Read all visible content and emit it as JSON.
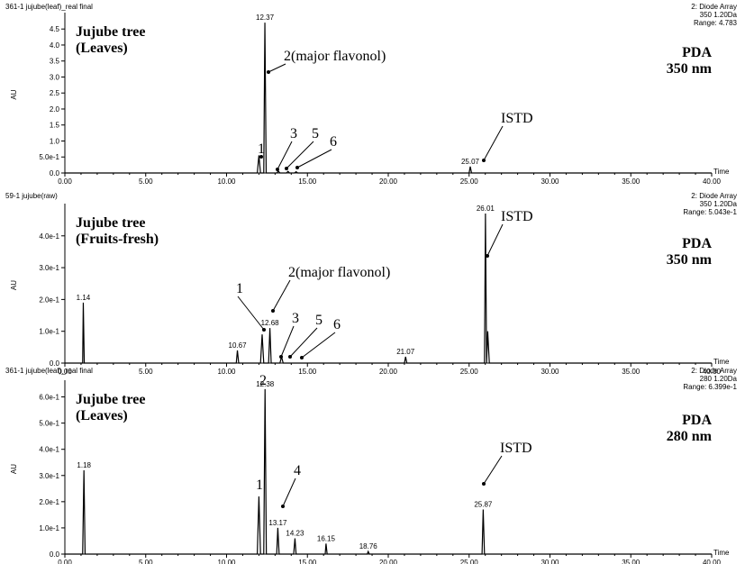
{
  "chart_data": [
    {
      "type": "line",
      "sample": "361-1 jujube(leaf)_real final",
      "detector": [
        "2: Diode Array",
        "350 1.20Da",
        "Range: 4.783"
      ],
      "title": [
        "Jujube tree",
        "(Leaves)"
      ],
      "mode": [
        "PDA",
        "350 nm"
      ],
      "x_label": "Time",
      "y_label": "AU",
      "xlim": [
        0,
        40
      ],
      "ylim": [
        0,
        4.9
      ],
      "xticks": [
        {
          "value": 0,
          "label": "0.00"
        },
        {
          "value": 5,
          "label": "5.00"
        },
        {
          "value": 10,
          "label": "10.00"
        },
        {
          "value": 15,
          "label": "15.00"
        },
        {
          "value": 20,
          "label": "20.00"
        },
        {
          "value": 25,
          "label": "25.00"
        },
        {
          "value": 30,
          "label": "30.00"
        },
        {
          "value": 35,
          "label": "35.00"
        },
        {
          "value": 40,
          "label": "40.00"
        }
      ],
      "yticks": [
        {
          "value": 0,
          "label": "0.0"
        },
        {
          "value": 0.5,
          "label": "5.0e-1"
        },
        {
          "value": 1,
          "label": "1.0"
        },
        1.5,
        {
          "value": 2,
          "label": "2.0"
        },
        2.5,
        {
          "value": 3,
          "label": "3.0"
        },
        3.5,
        {
          "value": 4,
          "label": "4.0"
        },
        4.5
      ],
      "color": "#000000",
      "x": [
        0,
        11.9,
        12.0,
        12.1,
        12.3,
        12.37,
        12.45,
        13.1,
        13.2,
        13.3,
        13.7,
        13.8,
        13.9,
        14.2,
        14.3,
        14.4,
        25.0,
        25.07,
        25.15,
        40
      ],
      "values": [
        0,
        0,
        0.55,
        0,
        0,
        4.7,
        0,
        0,
        0.06,
        0,
        0,
        0.05,
        0,
        0,
        0.04,
        0,
        0,
        0.2,
        0,
        0
      ],
      "annotations": [
        "1",
        "2(major flavonol)",
        "3",
        "5",
        "6",
        "ISTD"
      ]
    },
    {
      "type": "line",
      "sample": "59-1 jujube(raw)",
      "detector": [
        "2: Diode Array",
        "350 1.20Da",
        "Range: 5.043e-1"
      ],
      "title": [
        "Jujube tree",
        "(Fruits-fresh)"
      ],
      "mode": [
        "PDA",
        "350 nm"
      ],
      "x_label": "Time",
      "y_label": "AU",
      "xlim": [
        0,
        40
      ],
      "ylim": [
        0,
        0.49
      ],
      "xticks": [
        {
          "value": 0,
          "label": "0.00"
        },
        {
          "value": 5,
          "label": "5.00"
        },
        {
          "value": 10,
          "label": "10.00"
        },
        {
          "value": 15,
          "label": "15.00"
        },
        {
          "value": 20,
          "label": "20.00"
        },
        {
          "value": 25,
          "label": "25.00"
        },
        {
          "value": 30,
          "label": "30.00"
        },
        {
          "value": 35,
          "label": "35.00"
        },
        {
          "value": 40,
          "label": "40.00"
        }
      ],
      "yticks": [
        {
          "value": 0,
          "label": "0.0"
        },
        {
          "value": 0.1,
          "label": "1.0e-1"
        },
        {
          "value": 0.2,
          "label": "2.0e-1"
        },
        {
          "value": 0.3,
          "label": "3.0e-1"
        },
        {
          "value": 0.4,
          "label": "4.0e-1"
        }
      ],
      "color": "#000000",
      "x": [
        0,
        1.1,
        1.14,
        1.2,
        10.6,
        10.67,
        10.75,
        12.1,
        12.2,
        12.3,
        12.6,
        12.68,
        12.76,
        13.3,
        13.4,
        13.5,
        21.0,
        21.07,
        21.15,
        25.95,
        26.01,
        26.08,
        26.15,
        26.25,
        40
      ],
      "values": [
        0,
        0,
        0.19,
        0,
        0,
        0.04,
        0,
        0,
        0.09,
        0,
        0,
        0.11,
        0,
        0,
        0.02,
        0,
        0,
        0.02,
        0,
        0,
        0.47,
        0,
        0.1,
        0,
        0
      ],
      "annotations": [
        "1",
        "2(major flavonol)",
        "3",
        "5",
        "6",
        "ISTD"
      ]
    },
    {
      "type": "line",
      "sample": "361-1 jujube(leaf)_real final",
      "detector": [
        "2: Diode Array",
        "280 1.20Da",
        "Range: 6.399e-1"
      ],
      "title": [
        "Jujube tree",
        "(Leaves)"
      ],
      "mode": [
        "PDA",
        "280 nm"
      ],
      "x_label": "Time",
      "y_label": "AU",
      "xlim": [
        0,
        40
      ],
      "ylim": [
        0,
        0.65
      ],
      "xticks": [
        {
          "value": 0,
          "label": "0.00"
        },
        {
          "value": 5,
          "label": "5.00"
        },
        {
          "value": 10,
          "label": "10.00"
        },
        {
          "value": 15,
          "label": "15.00"
        },
        {
          "value": 20,
          "label": "20.00"
        },
        {
          "value": 25,
          "label": "25.00"
        },
        {
          "value": 30,
          "label": "30.00"
        },
        {
          "value": 35,
          "label": "35.00"
        },
        {
          "value": 40,
          "label": "40.00"
        }
      ],
      "yticks": [
        {
          "value": 0,
          "label": "0.0"
        },
        {
          "value": 0.1,
          "label": "1.0e-1"
        },
        {
          "value": 0.2,
          "label": "2.0e-1"
        },
        {
          "value": 0.3,
          "label": "3.0e-1"
        },
        {
          "value": 0.4,
          "label": "4.0e-1"
        },
        {
          "value": 0.5,
          "label": "5.0e-1"
        },
        {
          "value": 0.6,
          "label": "6.0e-1"
        }
      ],
      "color": "#000000",
      "x": [
        0,
        1.1,
        1.18,
        1.25,
        11.9,
        12.0,
        12.1,
        12.3,
        12.38,
        12.46,
        13.1,
        13.17,
        13.25,
        14.15,
        14.23,
        14.3,
        16.1,
        16.15,
        16.22,
        18.7,
        18.76,
        18.83,
        25.8,
        25.87,
        25.95,
        40
      ],
      "values": [
        0,
        0,
        0.32,
        0,
        0,
        0.22,
        0,
        0,
        0.63,
        0,
        0,
        0.1,
        0,
        0,
        0.06,
        0,
        0,
        0.04,
        0,
        0,
        0.01,
        0,
        0,
        0.17,
        0,
        0
      ],
      "annotations": [
        "2",
        "1",
        "4",
        "ISTD"
      ]
    }
  ]
}
